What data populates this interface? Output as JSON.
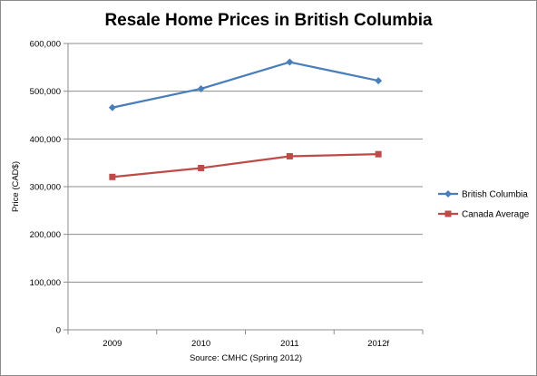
{
  "chart_data": {
    "type": "line",
    "title": "Resale Home Prices in British Columbia",
    "xlabel": "Source: CMHC (Spring 2012)",
    "ylabel": "Price (CAD$)",
    "categories": [
      "2009",
      "2010",
      "2011",
      "2012f"
    ],
    "ylim": [
      0,
      600000
    ],
    "yticks": [
      0,
      100000,
      200000,
      300000,
      400000,
      500000,
      600000
    ],
    "ytick_labels": [
      "0",
      "100,000",
      "200,000",
      "300,000",
      "400,000",
      "500,000",
      "600,000"
    ],
    "grid": "horizontal",
    "legend_position": "right",
    "series": [
      {
        "name": "British Columbia",
        "values": [
          465725,
          505178,
          561000,
          522000
        ],
        "color": "#4a7ebb",
        "marker": "diamond"
      },
      {
        "name": "Canada Average",
        "values": [
          320333,
          339030,
          363700,
          368000
        ],
        "color": "#be4b48",
        "marker": "square"
      }
    ]
  }
}
